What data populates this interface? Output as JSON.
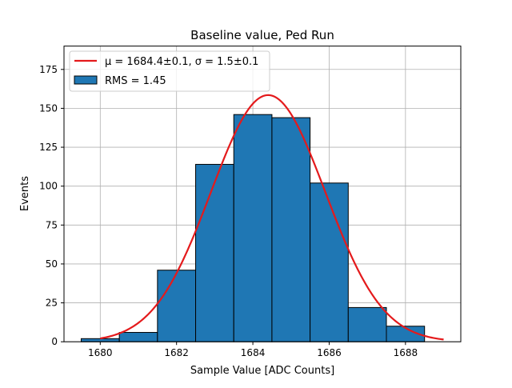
{
  "chart_data": {
    "type": "bar",
    "title": "Baseline value, Ped Run",
    "xlabel": "Sample Value [ADC Counts]",
    "ylabel": "Events",
    "xlim": [
      1679.05,
      1689.45
    ],
    "ylim": [
      0,
      190
    ],
    "grid": true,
    "legend_position": "top-left",
    "xticks": [
      1680,
      1682,
      1684,
      1686,
      1688
    ],
    "yticks": [
      0,
      25,
      50,
      75,
      100,
      125,
      150,
      175
    ],
    "bin_edges": [
      1679.5,
      1680.5,
      1681.5,
      1682.5,
      1683.5,
      1684.5,
      1685.5,
      1686.5,
      1687.5,
      1688.5
    ],
    "values": [
      2,
      6,
      46,
      114,
      146,
      144,
      102,
      22,
      10
    ],
    "histogram": {
      "name": "RMS = 1.45",
      "color": "#1f77b4"
    },
    "fit": {
      "name": "μ = 1684.4±0.1, σ = 1.5±0.1",
      "mu_label": "μ = 1684.4±0.1",
      "sigma_label": "σ = 1.5±0.1",
      "mu": 1684.4,
      "sigma": 1.5,
      "amplitude": 158.5,
      "x_range": [
        1680.0,
        1689.0
      ],
      "color": "#e41a1c"
    }
  }
}
